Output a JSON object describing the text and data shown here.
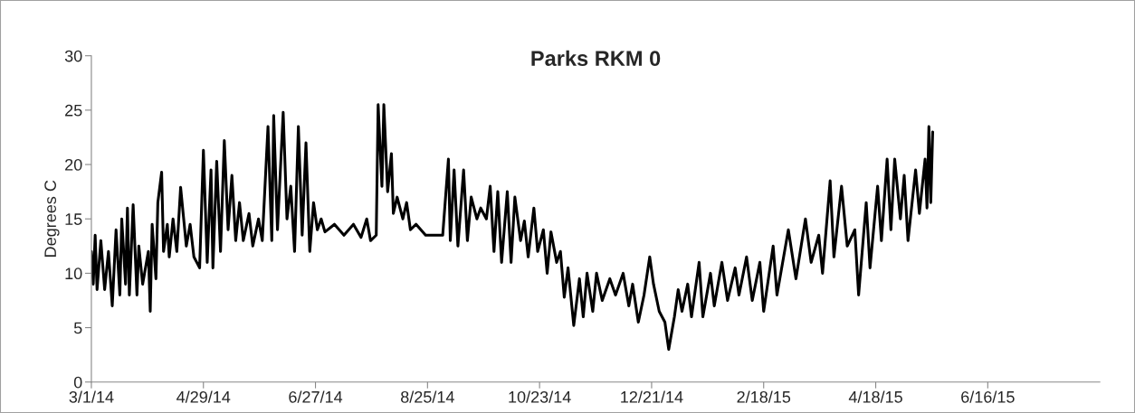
{
  "chart_data": {
    "type": "line",
    "title": "Parks RKM 0",
    "ylabel": "Degrees C",
    "x": [
      "2014-03-01",
      "2014-03-02",
      "2014-03-03",
      "2014-03-04",
      "2014-03-06",
      "2014-03-08",
      "2014-03-10",
      "2014-03-12",
      "2014-03-14",
      "2014-03-16",
      "2014-03-17",
      "2014-03-19",
      "2014-03-20",
      "2014-03-21",
      "2014-03-23",
      "2014-03-25",
      "2014-03-26",
      "2014-03-28",
      "2014-03-31",
      "2014-04-01",
      "2014-04-02",
      "2014-04-04",
      "2014-04-05",
      "2014-04-07",
      "2014-04-08",
      "2014-04-10",
      "2014-04-11",
      "2014-04-13",
      "2014-04-15",
      "2014-04-17",
      "2014-04-20",
      "2014-04-22",
      "2014-04-24",
      "2014-04-27",
      "2014-04-29",
      "2014-05-01",
      "2014-05-03",
      "2014-05-04",
      "2014-05-06",
      "2014-05-08",
      "2014-05-10",
      "2014-05-12",
      "2014-05-14",
      "2014-05-16",
      "2014-05-18",
      "2014-05-20",
      "2014-05-23",
      "2014-05-25",
      "2014-05-28",
      "2014-05-30",
      "2014-06-02",
      "2014-06-04",
      "2014-06-05",
      "2014-06-07",
      "2014-06-10",
      "2014-06-12",
      "2014-06-14",
      "2014-06-16",
      "2014-06-18",
      "2014-06-20",
      "2014-06-22",
      "2014-06-24",
      "2014-06-26",
      "2014-06-28",
      "2014-06-30",
      "2014-07-02",
      "2014-07-07",
      "2014-07-12",
      "2014-07-17",
      "2014-07-21",
      "2014-07-24",
      "2014-07-26",
      "2014-07-29",
      "2014-07-30",
      "2014-08-01",
      "2014-08-02",
      "2014-08-04",
      "2014-08-06",
      "2014-08-07",
      "2014-08-09",
      "2014-08-12",
      "2014-08-14",
      "2014-08-16",
      "2014-08-19",
      "2014-08-24",
      "2014-08-28",
      "2014-09-02",
      "2014-09-05",
      "2014-09-06",
      "2014-09-08",
      "2014-09-10",
      "2014-09-13",
      "2014-09-15",
      "2014-09-17",
      "2014-09-20",
      "2014-09-22",
      "2014-09-25",
      "2014-09-27",
      "2014-09-29",
      "2014-10-01",
      "2014-10-03",
      "2014-10-06",
      "2014-10-08",
      "2014-10-10",
      "2014-10-13",
      "2014-10-15",
      "2014-10-17",
      "2014-10-20",
      "2014-10-22",
      "2014-10-25",
      "2014-10-27",
      "2014-10-29",
      "2014-11-01",
      "2014-11-03",
      "2014-11-05",
      "2014-11-07",
      "2014-11-10",
      "2014-11-13",
      "2014-11-15",
      "2014-11-17",
      "2014-11-20",
      "2014-11-22",
      "2014-11-25",
      "2014-11-29",
      "2014-12-02",
      "2014-12-06",
      "2014-12-09",
      "2014-12-11",
      "2014-12-14",
      "2014-12-17",
      "2014-12-20",
      "2014-12-22",
      "2014-12-25",
      "2014-12-28",
      "2014-12-30",
      "2015-01-02",
      "2015-01-04",
      "2015-01-06",
      "2015-01-09",
      "2015-01-11",
      "2015-01-15",
      "2015-01-17",
      "2015-01-21",
      "2015-01-23",
      "2015-01-27",
      "2015-01-30",
      "2015-02-03",
      "2015-02-05",
      "2015-02-09",
      "2015-02-12",
      "2015-02-16",
      "2015-02-18",
      "2015-02-23",
      "2015-02-25",
      "2015-03-03",
      "2015-03-07",
      "2015-03-12",
      "2015-03-15",
      "2015-03-19",
      "2015-03-21",
      "2015-03-25",
      "2015-03-27",
      "2015-03-31",
      "2015-04-03",
      "2015-04-07",
      "2015-04-09",
      "2015-04-13",
      "2015-04-15",
      "2015-04-19",
      "2015-04-21",
      "2015-04-24",
      "2015-04-26",
      "2015-04-28",
      "2015-05-01",
      "2015-05-03",
      "2015-05-05",
      "2015-05-09",
      "2015-05-11",
      "2015-05-14",
      "2015-05-15",
      "2015-05-16",
      "2015-05-17",
      "2015-05-18"
    ],
    "series": [
      {
        "color": "#000000",
        "values": [
          12,
          9,
          13.5,
          8.5,
          13,
          8.5,
          12,
          7,
          14,
          8,
          15,
          9,
          16,
          8,
          16.3,
          8,
          12.5,
          9,
          12,
          6.5,
          14.5,
          9.5,
          16.5,
          19.3,
          12,
          14.5,
          11.5,
          15,
          12,
          17.9,
          12.5,
          14.5,
          11.5,
          10.5,
          21.3,
          11,
          19.5,
          10.5,
          20.3,
          12,
          22.2,
          14,
          19,
          13,
          16.5,
          13,
          15.5,
          12.5,
          15,
          13,
          23.5,
          13,
          24.5,
          14,
          24.8,
          15,
          18,
          12,
          23.5,
          13.5,
          22,
          12,
          16.5,
          14,
          15,
          13.8,
          14.5,
          13.5,
          14.5,
          13.3,
          15,
          13,
          13.5,
          25.5,
          18,
          25.5,
          17.5,
          21,
          15.5,
          17,
          15,
          16.5,
          14,
          14.5,
          13.5,
          13.5,
          13.5,
          20.5,
          13,
          19.5,
          12.5,
          19.5,
          13,
          17,
          15,
          16,
          15,
          18,
          12,
          17.5,
          11,
          17.5,
          11,
          17,
          13,
          14.8,
          11.5,
          16,
          12,
          14,
          10,
          13.8,
          11,
          12,
          7.8,
          10.5,
          5.2,
          9.5,
          6,
          10,
          6.5,
          10,
          7.5,
          9.5,
          8,
          10,
          7,
          9,
          5.5,
          8,
          11.5,
          9,
          6.5,
          5.5,
          3,
          6,
          8.5,
          6.5,
          9,
          6,
          11,
          6,
          10,
          7,
          11,
          7.5,
          10.5,
          8,
          11.5,
          7.5,
          11,
          6.5,
          12.5,
          8,
          14,
          9.5,
          15,
          11,
          13.5,
          10,
          18.5,
          11.5,
          18,
          12.5,
          14,
          8,
          16.5,
          10.5,
          18,
          13,
          20.5,
          14,
          20.5,
          15,
          19,
          13,
          19.5,
          15.5,
          20.5,
          16,
          23.5,
          16.5,
          23
        ]
      }
    ],
    "xlim": [
      "2014-03-01",
      "2015-08-14"
    ],
    "xticks": [
      {
        "value": "2014-03-01",
        "label": "3/1/14"
      },
      {
        "value": "2014-04-29",
        "label": "4/29/14"
      },
      {
        "value": "2014-06-27",
        "label": "6/27/14"
      },
      {
        "value": "2014-08-25",
        "label": "8/25/14"
      },
      {
        "value": "2014-10-23",
        "label": "10/23/14"
      },
      {
        "value": "2014-12-21",
        "label": "12/21/14"
      },
      {
        "value": "2015-02-18",
        "label": "2/18/15"
      },
      {
        "value": "2015-04-18",
        "label": "4/18/15"
      },
      {
        "value": "2015-06-16",
        "label": "6/16/15"
      }
    ],
    "ylim": [
      0,
      30
    ],
    "yticks": [
      0,
      5,
      10,
      15,
      20,
      25,
      30
    ],
    "grid": false,
    "legend": false,
    "marker": "none",
    "line_style": "solid"
  }
}
